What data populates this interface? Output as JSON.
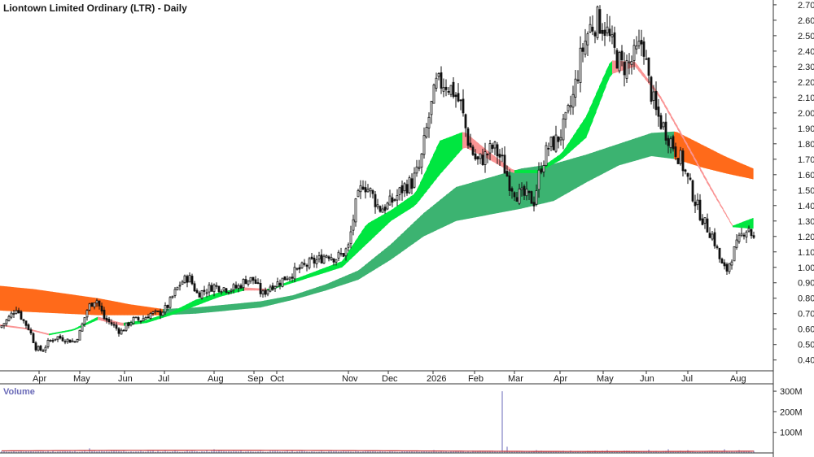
{
  "chart_data": {
    "type": "candlestick",
    "title": "Liontown Limited Ordinary (LTR) - Daily",
    "y_axis": {
      "side": "right",
      "ylim": [
        0.33,
        2.71
      ],
      "ticks": [
        "2.70",
        "2.60",
        "2.50",
        "2.40",
        "2.30",
        "2.20",
        "2.10",
        "2.00",
        "1.90",
        "1.80",
        "1.70",
        "1.60",
        "1.50",
        "1.40",
        "1.30",
        "1.20",
        "1.10",
        "1.00",
        "0.90",
        "0.80",
        "0.70",
        "0.60",
        "0.50",
        "0.40"
      ]
    },
    "x_axis": {
      "labels": [
        "Apr",
        "May",
        "Jun",
        "Jul",
        "Aug",
        "Sep",
        "Oct",
        "Nov",
        "Dec",
        "2026",
        "Feb",
        "Mar",
        "Apr",
        "May",
        "Jun",
        "Jul",
        "Aug"
      ],
      "label_positions": [
        48,
        98,
        153,
        202,
        263,
        312,
        340,
        428,
        477,
        532,
        583,
        632,
        688,
        741,
        794,
        845,
        905
      ],
      "x_range": [
        0,
        935
      ]
    },
    "price_path": [
      [
        0,
        0.61
      ],
      [
        12,
        0.68
      ],
      [
        20,
        0.74
      ],
      [
        28,
        0.66
      ],
      [
        36,
        0.6
      ],
      [
        44,
        0.48
      ],
      [
        52,
        0.46
      ],
      [
        60,
        0.52
      ],
      [
        70,
        0.55
      ],
      [
        82,
        0.53
      ],
      [
        92,
        0.52
      ],
      [
        98,
        0.58
      ],
      [
        108,
        0.74
      ],
      [
        118,
        0.8
      ],
      [
        128,
        0.67
      ],
      [
        138,
        0.63
      ],
      [
        148,
        0.58
      ],
      [
        153,
        0.61
      ],
      [
        163,
        0.66
      ],
      [
        173,
        0.66
      ],
      [
        185,
        0.7
      ],
      [
        195,
        0.7
      ],
      [
        205,
        0.74
      ],
      [
        213,
        0.82
      ],
      [
        222,
        0.9
      ],
      [
        232,
        0.94
      ],
      [
        242,
        0.83
      ],
      [
        252,
        0.85
      ],
      [
        262,
        0.88
      ],
      [
        272,
        0.87
      ],
      [
        282,
        0.86
      ],
      [
        292,
        0.87
      ],
      [
        302,
        0.92
      ],
      [
        312,
        0.92
      ],
      [
        322,
        0.82
      ],
      [
        332,
        0.88
      ],
      [
        342,
        0.9
      ],
      [
        352,
        0.94
      ],
      [
        362,
        0.97
      ],
      [
        372,
        1.0
      ],
      [
        382,
        1.03
      ],
      [
        392,
        1.05
      ],
      [
        402,
        1.09
      ],
      [
        412,
        1.06
      ],
      [
        422,
        1.09
      ],
      [
        428,
        1.13
      ],
      [
        436,
        1.38
      ],
      [
        446,
        1.55
      ],
      [
        456,
        1.48
      ],
      [
        466,
        1.38
      ],
      [
        476,
        1.4
      ],
      [
        486,
        1.45
      ],
      [
        496,
        1.52
      ],
      [
        506,
        1.55
      ],
      [
        516,
        1.65
      ],
      [
        526,
        1.95
      ],
      [
        536,
        2.18
      ],
      [
        546,
        2.2
      ],
      [
        556,
        2.15
      ],
      [
        566,
        2.05
      ],
      [
        576,
        1.8
      ],
      [
        586,
        1.68
      ],
      [
        596,
        1.72
      ],
      [
        606,
        1.78
      ],
      [
        616,
        1.7
      ],
      [
        626,
        1.55
      ],
      [
        636,
        1.47
      ],
      [
        646,
        1.46
      ],
      [
        656,
        1.43
      ],
      [
        664,
        1.65
      ],
      [
        674,
        1.78
      ],
      [
        684,
        1.82
      ],
      [
        694,
        1.92
      ],
      [
        704,
        2.1
      ],
      [
        714,
        2.38
      ],
      [
        724,
        2.55
      ],
      [
        734,
        2.6
      ],
      [
        744,
        2.55
      ],
      [
        754,
        2.4
      ],
      [
        764,
        2.3
      ],
      [
        774,
        2.32
      ],
      [
        784,
        2.4
      ],
      [
        790,
        2.48
      ],
      [
        796,
        2.22
      ],
      [
        806,
        2.0
      ],
      [
        816,
        1.9
      ],
      [
        826,
        1.8
      ],
      [
        836,
        1.7
      ],
      [
        846,
        1.55
      ],
      [
        856,
        1.4
      ],
      [
        866,
        1.28
      ],
      [
        876,
        1.2
      ],
      [
        886,
        1.02
      ],
      [
        892,
        0.97
      ],
      [
        898,
        1.06
      ],
      [
        906,
        1.15
      ],
      [
        914,
        1.24
      ],
      [
        920,
        1.26
      ],
      [
        926,
        1.18
      ]
    ],
    "bands": [
      {
        "name": "short",
        "color_up": "#00e640",
        "color_down": "#fa9494",
        "x": [
          0,
          30,
          60,
          90,
          120,
          150,
          180,
          210,
          240,
          270,
          300,
          330,
          360,
          390,
          420,
          450,
          480,
          510,
          540,
          570,
          600,
          630,
          660,
          690,
          720,
          750,
          780,
          810,
          840,
          870,
          900,
          925
        ],
        "top": [
          0.63,
          0.61,
          0.57,
          0.6,
          0.68,
          0.64,
          0.66,
          0.71,
          0.79,
          0.84,
          0.87,
          0.86,
          0.92,
          0.98,
          1.04,
          1.28,
          1.37,
          1.48,
          1.82,
          1.88,
          1.75,
          1.63,
          1.63,
          1.74,
          1.98,
          2.34,
          2.33,
          2.12,
          1.84,
          1.55,
          1.27,
          1.32
        ],
        "bottom": [
          0.62,
          0.6,
          0.56,
          0.59,
          0.66,
          0.62,
          0.64,
          0.69,
          0.75,
          0.81,
          0.85,
          0.85,
          0.9,
          0.95,
          1.0,
          1.15,
          1.3,
          1.4,
          1.6,
          1.78,
          1.7,
          1.61,
          1.61,
          1.7,
          1.84,
          2.25,
          2.3,
          2.1,
          1.82,
          1.53,
          1.26,
          1.25
        ]
      },
      {
        "name": "long",
        "color_up": "#3cb371",
        "color_down": "#ff6a1a",
        "x": [
          0,
          40,
          80,
          120,
          160,
          200,
          240,
          280,
          320,
          360,
          400,
          440,
          480,
          520,
          560,
          600,
          640,
          680,
          720,
          760,
          800,
          830,
          860,
          890,
          925
        ],
        "top": [
          0.88,
          0.86,
          0.83,
          0.8,
          0.76,
          0.73,
          0.74,
          0.76,
          0.78,
          0.82,
          0.89,
          0.98,
          1.15,
          1.35,
          1.52,
          1.58,
          1.64,
          1.67,
          1.73,
          1.8,
          1.87,
          1.88,
          1.8,
          1.72,
          1.64
        ],
        "bottom": [
          0.72,
          0.71,
          0.7,
          0.69,
          0.69,
          0.69,
          0.7,
          0.72,
          0.74,
          0.79,
          0.85,
          0.92,
          1.05,
          1.2,
          1.3,
          1.34,
          1.38,
          1.43,
          1.55,
          1.66,
          1.72,
          1.7,
          1.65,
          1.61,
          1.57
        ]
      }
    ],
    "volume": {
      "label": "Volume",
      "ticks": [
        "300M",
        "200M",
        "100M"
      ],
      "ylim": [
        0,
        320
      ],
      "baseline": 8,
      "average_line_color": "#c03030",
      "spikes": [
        [
          110,
          22
        ],
        [
          263,
          18
        ],
        [
          268,
          12
        ],
        [
          331,
          10
        ],
        [
          466,
          12
        ],
        [
          497,
          11
        ],
        [
          533,
          14
        ],
        [
          568,
          10
        ],
        [
          617,
          300
        ],
        [
          622,
          30
        ],
        [
          658,
          14
        ],
        [
          700,
          12
        ],
        [
          745,
          14
        ],
        [
          798,
          16
        ],
        [
          820,
          18
        ],
        [
          846,
          14
        ],
        [
          876,
          12
        ],
        [
          889,
          18
        ],
        [
          908,
          14
        ]
      ]
    }
  }
}
